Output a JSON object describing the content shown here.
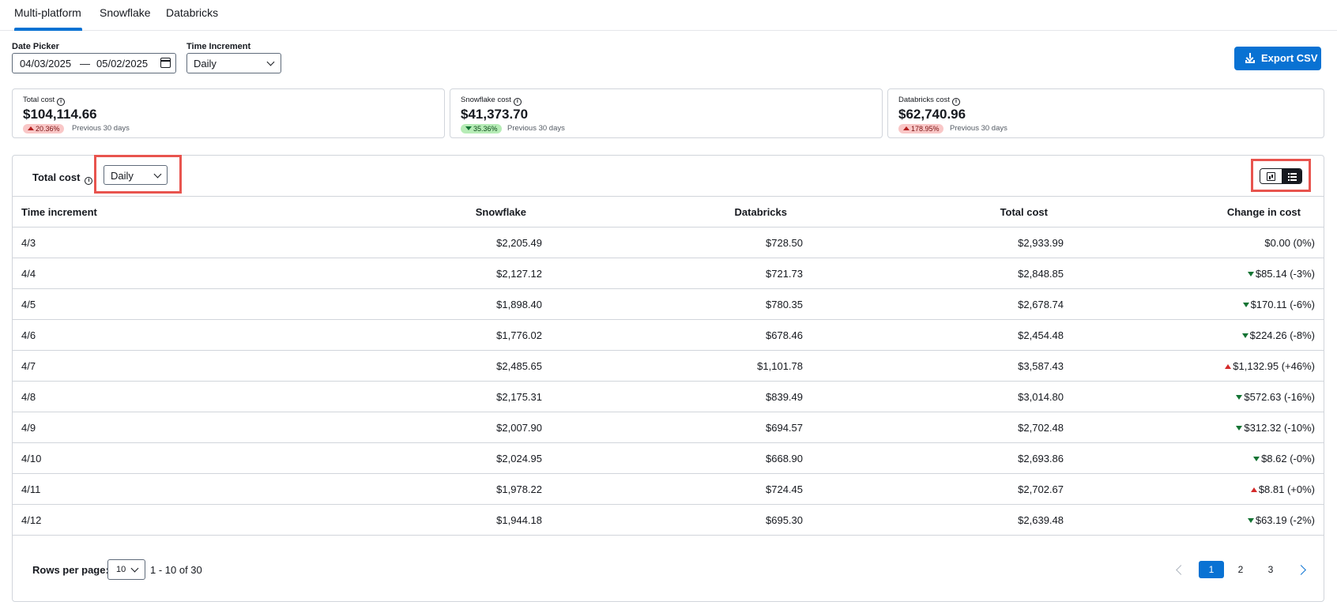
{
  "tabs": [
    {
      "label": "Multi-platform",
      "active": true
    },
    {
      "label": "Snowflake",
      "active": false
    },
    {
      "label": "Databricks",
      "active": false
    }
  ],
  "filters": {
    "date_label": "Date Picker",
    "date_start": "04/03/2025",
    "date_sep": "—",
    "date_end": "05/02/2025",
    "increment_label": "Time Increment",
    "increment_value": "Daily"
  },
  "export_label": "Export CSV",
  "cards": [
    {
      "title": "Total cost",
      "value": "$104,114.66",
      "change": "20.36%",
      "direction": "up",
      "compare": "Previous 30 days"
    },
    {
      "title": "Snowflake cost",
      "value": "$41,373.70",
      "change": "35.36%",
      "direction": "down",
      "compare": "Previous 30 days"
    },
    {
      "title": "Databricks cost",
      "value": "$62,740.96",
      "change": "178.95%",
      "direction": "up",
      "compare": "Previous 30 days"
    }
  ],
  "panel": {
    "title": "Total cost",
    "increment_value": "Daily",
    "columns": [
      "Time increment",
      "Snowflake",
      "Databricks",
      "Total cost",
      "Change in cost"
    ],
    "rows": [
      {
        "date": "4/3",
        "snowflake": "$2,205.49",
        "databricks": "$728.50",
        "total": "$2,933.99",
        "change": "$0.00 (0%)",
        "dir": "none"
      },
      {
        "date": "4/4",
        "snowflake": "$2,127.12",
        "databricks": "$721.73",
        "total": "$2,848.85",
        "change": "$85.14 (-3%)",
        "dir": "down"
      },
      {
        "date": "4/5",
        "snowflake": "$1,898.40",
        "databricks": "$780.35",
        "total": "$2,678.74",
        "change": "$170.11 (-6%)",
        "dir": "down"
      },
      {
        "date": "4/6",
        "snowflake": "$1,776.02",
        "databricks": "$678.46",
        "total": "$2,454.48",
        "change": "$224.26 (-8%)",
        "dir": "down"
      },
      {
        "date": "4/7",
        "snowflake": "$2,485.65",
        "databricks": "$1,101.78",
        "total": "$3,587.43",
        "change": "$1,132.95 (+46%)",
        "dir": "up"
      },
      {
        "date": "4/8",
        "snowflake": "$2,175.31",
        "databricks": "$839.49",
        "total": "$3,014.80",
        "change": "$572.63 (-16%)",
        "dir": "down"
      },
      {
        "date": "4/9",
        "snowflake": "$2,007.90",
        "databricks": "$694.57",
        "total": "$2,702.48",
        "change": "$312.32 (-10%)",
        "dir": "down"
      },
      {
        "date": "4/10",
        "snowflake": "$2,024.95",
        "databricks": "$668.90",
        "total": "$2,693.86",
        "change": "$8.62 (-0%)",
        "dir": "down"
      },
      {
        "date": "4/11",
        "snowflake": "$1,978.22",
        "databricks": "$724.45",
        "total": "$2,702.67",
        "change": "$8.81 (+0%)",
        "dir": "up"
      },
      {
        "date": "4/12",
        "snowflake": "$1,944.18",
        "databricks": "$695.30",
        "total": "$2,639.48",
        "change": "$63.19 (-2%)",
        "dir": "down"
      }
    ]
  },
  "footer": {
    "rows_per_page_label": "Rows per page:",
    "rows_per_page_value": "10",
    "range": "1 - 10 of 30",
    "pages": [
      "1",
      "2",
      "3"
    ],
    "current_page": "1"
  },
  "colors": {
    "accent": "#0972d3",
    "highlight": "#e8544e",
    "up": "#d42a2a",
    "down": "#137333"
  }
}
